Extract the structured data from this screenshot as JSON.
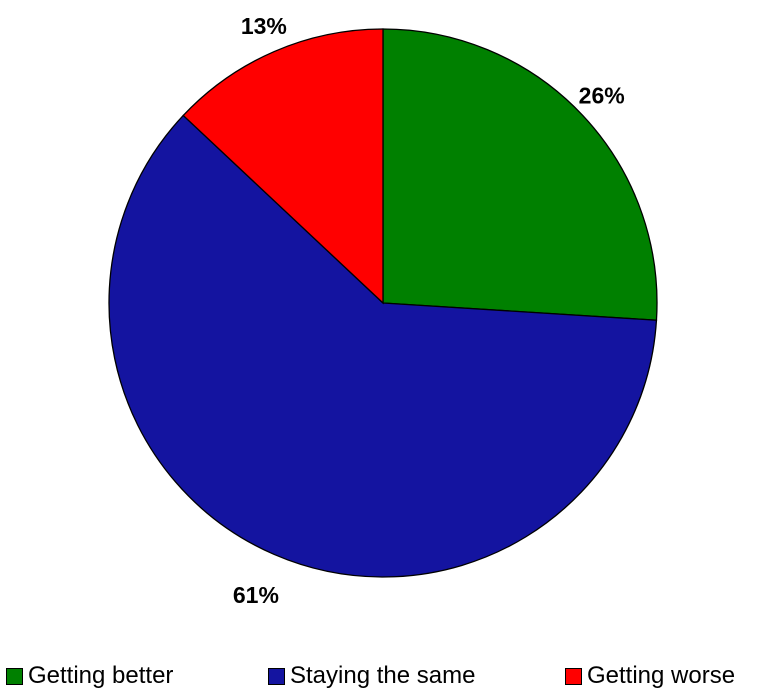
{
  "chart_data": {
    "type": "pie",
    "title": "",
    "slices": [
      {
        "label": "Getting better",
        "value": 26,
        "display": "26%",
        "color": "#008000"
      },
      {
        "label": "Staying the same",
        "value": 61,
        "display": "61%",
        "color": "#1414A0"
      },
      {
        "label": "Getting worse",
        "value": 13,
        "display": "13%",
        "color": "#FF0000"
      }
    ],
    "start_angle": "12 o'clock",
    "direction": "clockwise",
    "legend_position": "bottom"
  }
}
